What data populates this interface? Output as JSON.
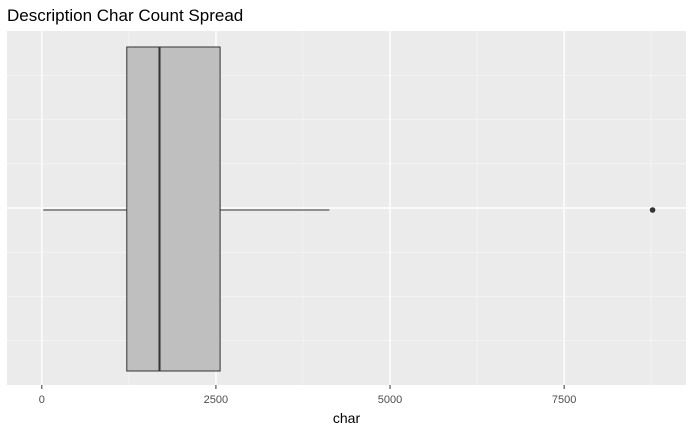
{
  "chart_data": {
    "type": "boxplot",
    "orientation": "horizontal",
    "title": "Description Char Count Spread",
    "xlabel": "char",
    "ylabel": "",
    "xlim": [
      -500,
      9250
    ],
    "ticks": [
      {
        "value": 0,
        "label": "0"
      },
      {
        "value": 2500,
        "label": "2500"
      },
      {
        "value": 5000,
        "label": "5000"
      },
      {
        "value": 7500,
        "label": "7500"
      }
    ],
    "box": {
      "whisker_low": 20,
      "q1": 1220,
      "median": 1690,
      "q3": 2560,
      "whisker_high": 4130,
      "outliers": [
        8770
      ]
    },
    "colors": {
      "panel": "#ebebeb",
      "grid_major": "#ffffff",
      "grid_minor": "#f5f5f5",
      "box_fill": "#bfbfbf",
      "box_stroke": "#333333",
      "whisker": "#333333"
    },
    "grid": true
  }
}
